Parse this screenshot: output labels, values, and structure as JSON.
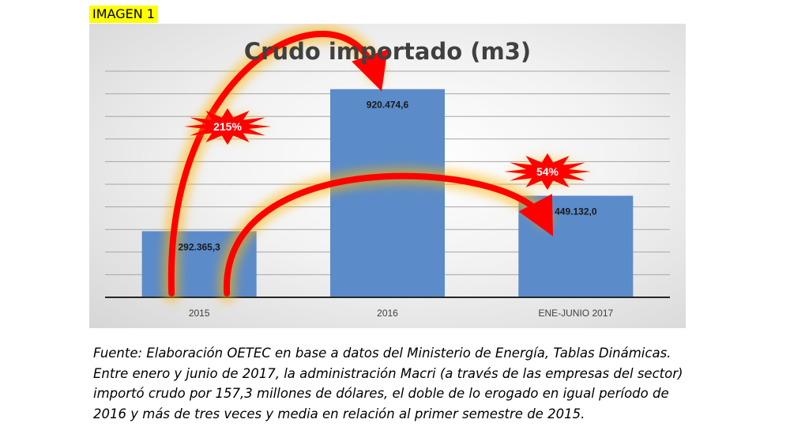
{
  "tag": "IMAGEN 1",
  "chart_data": {
    "type": "bar",
    "title": "Crudo importado (m3)",
    "categories": [
      "2015",
      "2016",
      "ENE-JUNIO 2017"
    ],
    "values": [
      292365.3,
      920474.6,
      449132.0
    ],
    "value_labels": [
      "292.365,3",
      "920.474,6",
      "449.132,0"
    ],
    "ylim": [
      0,
      1000000
    ],
    "grid": true,
    "annotations": [
      {
        "label": "215%",
        "from": "2015",
        "to": "2016"
      },
      {
        "label": "54%",
        "from": "2015",
        "to": "ENE-JUNIO 2017"
      }
    ],
    "colors": {
      "bar": "#5b8bc9",
      "arrow": "#ff0000",
      "glow": "#ffb400"
    }
  },
  "caption": "Fuente: Elaboración OETEC en base a datos del Ministerio de Energía, Tablas Dinámicas. Entre enero y junio de 2017, la administración Macri (a través de las empresas del sector) importó crudo por 157,3 millones de dólares, el doble de lo erogado en igual período de 2016 y más de tres veces y media en relación al primer semestre de 2015."
}
